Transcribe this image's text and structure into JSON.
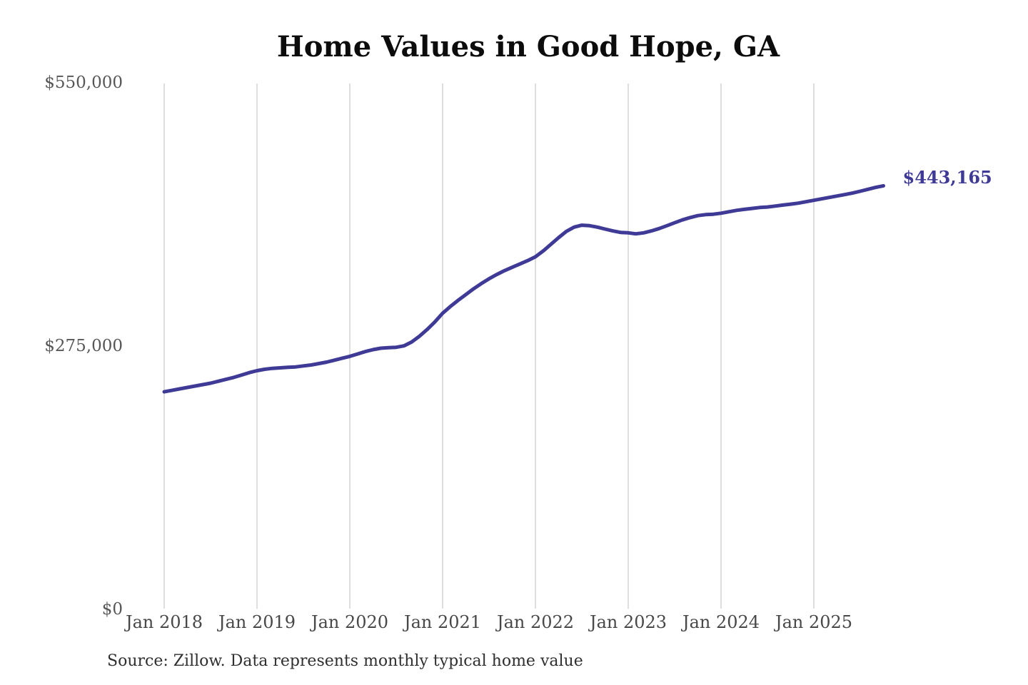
{
  "page": {
    "background": "#ffffff"
  },
  "chart_data": {
    "type": "line",
    "title": "Home Values in Good Hope, GA",
    "source_note": "Source: Zillow. Data represents monthly typical home value",
    "end_value_label": "$443,165",
    "end_value": 443165,
    "frequency": "monthly",
    "start_month": "Jan 2018",
    "end_month": "Oct 2025",
    "x_tick_labels": [
      "Jan 2018",
      "Jan 2019",
      "Jan 2020",
      "Jan 2021",
      "Jan 2022",
      "Jan 2023",
      "Jan 2024",
      "Jan 2025"
    ],
    "y_ticks": [
      {
        "label": "$0",
        "value": 0
      },
      {
        "label": "$275,000",
        "value": 275000
      },
      {
        "label": "$550,000",
        "value": 550000
      }
    ],
    "ylim": [
      0,
      550000
    ],
    "grid": "vertical-only",
    "grid_color": "#cdcdcd",
    "legend": "none",
    "series": [
      {
        "name": "Typical home value",
        "color": "#3e3a96",
        "values": [
          228000,
          229500,
          231000,
          232500,
          234000,
          235500,
          237000,
          239000,
          241000,
          243000,
          245500,
          248000,
          250000,
          251500,
          252500,
          253000,
          253500,
          254000,
          255000,
          256000,
          257500,
          259000,
          261000,
          263000,
          265000,
          267500,
          270000,
          272000,
          273500,
          274000,
          274500,
          276000,
          280000,
          286000,
          293000,
          301000,
          310000,
          317000,
          323500,
          329500,
          335500,
          341000,
          346000,
          350500,
          354500,
          358000,
          361500,
          365000,
          369000,
          375000,
          382000,
          389000,
          395500,
          400000,
          402000,
          401500,
          400000,
          398000,
          396000,
          394500,
          394000,
          393000,
          394000,
          396000,
          398500,
          401500,
          404500,
          407500,
          410000,
          412000,
          413000,
          413500,
          414500,
          416000,
          417500,
          418500,
          419500,
          420500,
          421000,
          422000,
          423000,
          424000,
          425000,
          426500,
          428000,
          429500,
          431000,
          432500,
          434000,
          435500,
          437500,
          439500,
          441500,
          443165
        ]
      }
    ]
  }
}
